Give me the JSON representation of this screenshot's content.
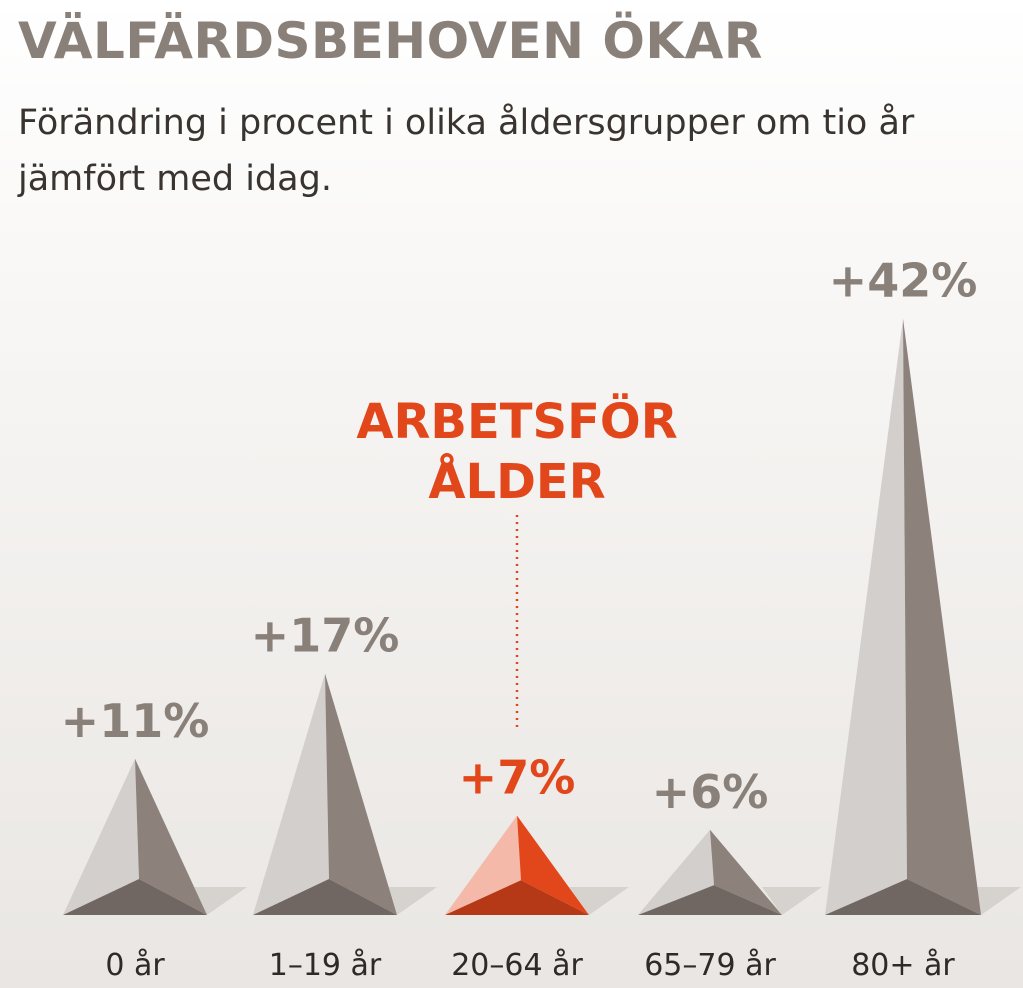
{
  "chart_data": {
    "type": "pyramid",
    "title": "VÄLFÄRDSBEHOVEN ÖKAR",
    "subtitle": "Förändring i procent i olika åldersgrupper om tio år jämfört med idag.",
    "categories": [
      "0 år",
      "1–19 år",
      "20–64 år",
      "65–79 år",
      "80+ år"
    ],
    "values": [
      11,
      17,
      7,
      6,
      42
    ],
    "value_labels": [
      "+11%",
      "+17%",
      "+7%",
      "+6%",
      "+42%"
    ],
    "colors": [
      "#8c817b",
      "#8c817b",
      "#e2471b",
      "#8c817b",
      "#8c817b"
    ],
    "annotation": [
      "ARBETSFÖR",
      "ÅLDER"
    ],
    "annotation_color": "#e2471b"
  }
}
